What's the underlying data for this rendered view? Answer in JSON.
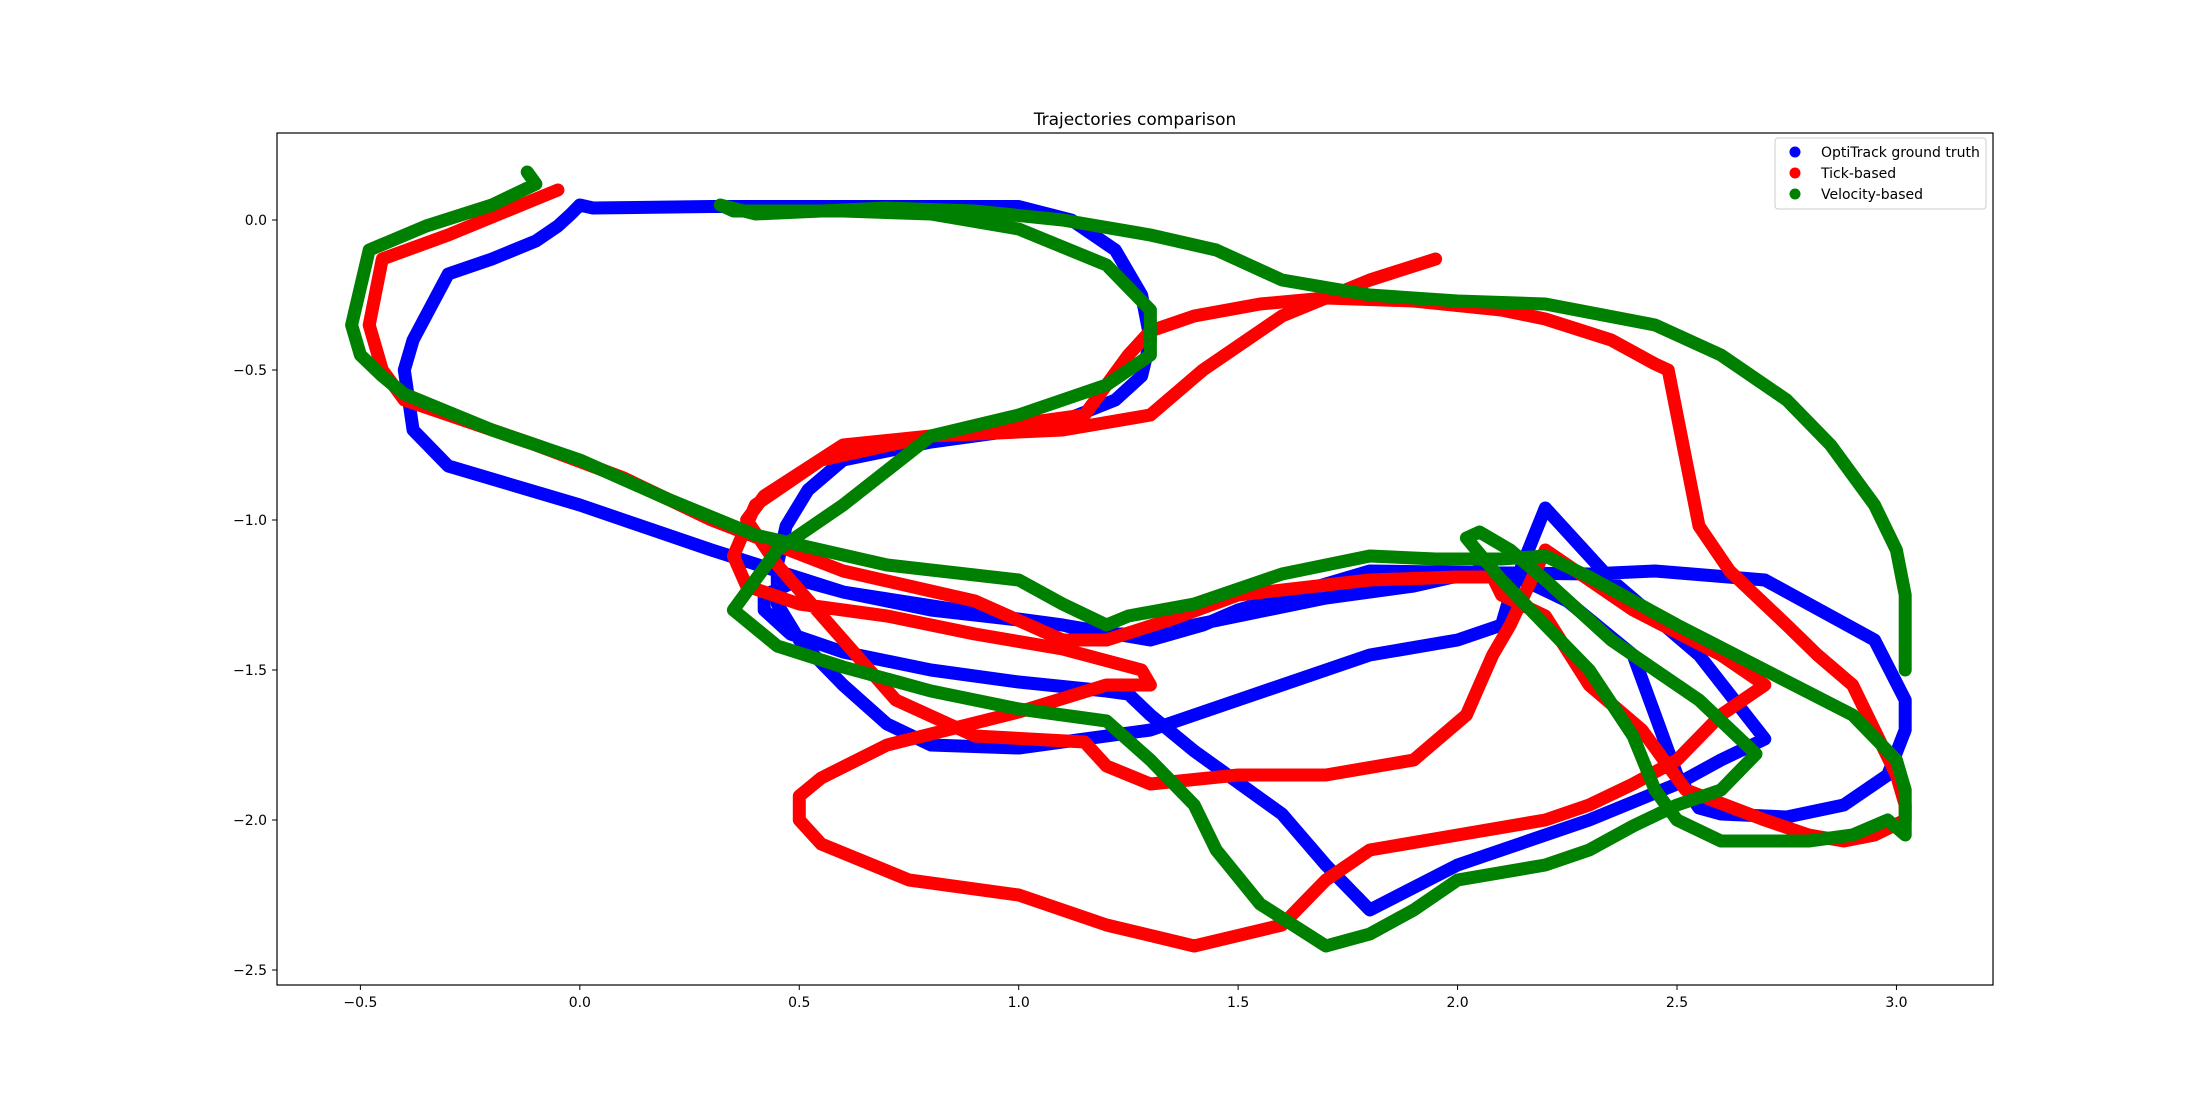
{
  "chart_data": {
    "type": "scatter",
    "title": "Trajectories comparison",
    "xlabel": "",
    "ylabel": "",
    "xlim": [
      -0.69,
      3.22
    ],
    "ylim": [
      -2.55,
      0.29
    ],
    "xticks": [
      -0.5,
      0.0,
      0.5,
      1.0,
      1.5,
      2.0,
      2.5,
      3.0
    ],
    "xtick_labels": [
      "−0.5",
      "0.0",
      "0.5",
      "1.0",
      "1.5",
      "2.0",
      "2.5",
      "3.0"
    ],
    "yticks": [
      0.0,
      -0.5,
      -1.0,
      -1.5,
      -2.0,
      -2.5
    ],
    "ytick_labels": [
      "0.0",
      "−0.5",
      "−1.0",
      "−1.5",
      "−2.0",
      "−2.5"
    ],
    "grid": false,
    "legend_position": "top-right",
    "series": [
      {
        "name": "OptiTrack ground truth",
        "color": "#0000ff",
        "x": [
          0.0,
          0.03,
          0.3,
          0.7,
          1.0,
          1.12,
          1.22,
          1.28,
          1.3,
          1.28,
          1.22,
          1.1,
          1.0,
          0.8,
          0.6,
          0.52,
          0.47,
          0.45,
          0.45,
          0.5,
          0.6,
          0.7,
          0.8,
          1.0,
          1.3,
          1.5,
          1.7,
          1.8,
          2.0,
          2.1,
          2.12,
          2.2,
          2.35,
          2.55,
          2.7,
          2.6,
          2.5,
          2.3,
          2.0,
          1.8,
          1.7,
          1.6,
          1.4,
          1.3,
          1.25,
          1.2,
          1.0,
          0.8,
          0.6,
          0.48,
          0.42,
          0.42,
          0.5,
          0.6,
          0.8,
          1.1,
          1.3,
          1.42,
          1.5,
          1.8,
          2.3,
          2.45,
          2.7,
          2.95,
          3.02,
          3.02,
          2.98,
          2.88,
          2.75,
          2.6,
          2.55,
          2.5,
          2.45,
          2.4,
          2.25,
          2.15,
          2.05,
          1.9,
          1.7,
          1.5,
          1.3,
          1.18,
          1.1,
          0.95,
          0.6,
          0.3,
          0.0,
          -0.3,
          -0.38,
          -0.4,
          -0.38,
          -0.3,
          -0.2,
          -0.1,
          -0.05,
          -0.02,
          0.0
        ],
        "y": [
          0.05,
          0.04,
          0.045,
          0.045,
          0.045,
          0.0,
          -0.1,
          -0.25,
          -0.4,
          -0.52,
          -0.6,
          -0.67,
          -0.7,
          -0.74,
          -0.8,
          -0.9,
          -1.02,
          -1.15,
          -1.28,
          -1.4,
          -1.55,
          -1.68,
          -1.75,
          -1.76,
          -1.7,
          -1.6,
          -1.5,
          -1.45,
          -1.4,
          -1.35,
          -1.25,
          -0.96,
          -1.2,
          -1.45,
          -1.73,
          -1.8,
          -1.88,
          -2.0,
          -2.15,
          -2.3,
          -2.15,
          -1.98,
          -1.77,
          -1.65,
          -1.58,
          -1.57,
          -1.54,
          -1.5,
          -1.44,
          -1.38,
          -1.3,
          -1.25,
          -1.2,
          -1.24,
          -1.3,
          -1.35,
          -1.4,
          -1.35,
          -1.3,
          -1.17,
          -1.18,
          -1.17,
          -1.2,
          -1.4,
          -1.6,
          -1.7,
          -1.85,
          -1.95,
          -1.99,
          -1.98,
          -1.96,
          -1.85,
          -1.65,
          -1.45,
          -1.27,
          -1.2,
          -1.17,
          -1.22,
          -1.26,
          -1.32,
          -1.38,
          -1.38,
          -1.35,
          -1.32,
          -1.24,
          -1.1,
          -0.95,
          -0.82,
          -0.7,
          -0.5,
          -0.4,
          -0.18,
          -0.13,
          -0.07,
          -0.02,
          0.02,
          0.05
        ]
      },
      {
        "name": "Tick-based",
        "color": "#ff0000",
        "x": [
          -0.05,
          -0.1,
          -0.2,
          -0.3,
          -0.45,
          -0.48,
          -0.45,
          -0.4,
          -0.3,
          -0.1,
          0.1,
          0.3,
          0.6,
          0.9,
          1.1,
          1.2,
          1.35,
          1.5,
          1.8,
          2.0,
          2.08,
          2.1,
          2.2,
          2.3,
          2.42,
          2.52,
          2.7,
          2.8,
          2.88,
          2.95,
          3.02,
          3.02,
          3.0,
          2.95,
          2.9,
          2.82,
          2.75,
          2.62,
          2.55,
          2.48,
          2.45,
          2.35,
          2.2,
          2.1,
          1.9,
          1.7,
          1.55,
          1.4,
          1.3,
          1.25,
          1.15,
          1.0,
          0.8,
          0.6,
          0.42,
          0.38,
          0.45,
          0.6,
          0.72,
          0.9,
          1.15,
          1.2,
          1.3,
          1.5,
          1.7,
          1.9,
          2.02,
          2.05,
          2.08,
          2.12,
          2.2,
          2.4,
          2.6,
          2.7,
          2.6,
          2.5,
          2.4,
          2.3,
          2.2,
          2.0,
          1.8,
          1.7,
          1.6,
          1.4,
          1.2,
          1.0,
          0.75,
          0.55,
          0.5,
          0.5,
          0.55,
          0.7,
          1.0,
          1.2,
          1.3,
          1.28,
          1.1,
          0.9,
          0.7,
          0.5,
          0.38,
          0.35,
          0.4,
          0.55,
          0.8,
          1.1,
          1.3,
          1.42,
          1.6,
          1.8,
          1.95
        ],
        "y": [
          0.1,
          0.07,
          0.01,
          -0.05,
          -0.13,
          -0.35,
          -0.5,
          -0.6,
          -0.65,
          -0.75,
          -0.86,
          -1.0,
          -1.17,
          -1.27,
          -1.4,
          -1.4,
          -1.33,
          -1.25,
          -1.2,
          -1.19,
          -1.19,
          -1.25,
          -1.32,
          -1.55,
          -1.7,
          -1.9,
          -2.0,
          -2.05,
          -2.07,
          -2.05,
          -2.0,
          -1.95,
          -1.85,
          -1.7,
          -1.55,
          -1.45,
          -1.35,
          -1.17,
          -1.02,
          -0.5,
          -0.48,
          -0.4,
          -0.33,
          -0.3,
          -0.27,
          -0.26,
          -0.28,
          -0.32,
          -0.37,
          -0.45,
          -0.65,
          -0.68,
          -0.72,
          -0.75,
          -0.92,
          -1.0,
          -1.15,
          -1.4,
          -1.6,
          -1.72,
          -1.74,
          -1.82,
          -1.88,
          -1.85,
          -1.85,
          -1.8,
          -1.65,
          -1.55,
          -1.45,
          -1.35,
          -1.1,
          -1.3,
          -1.45,
          -1.55,
          -1.65,
          -1.8,
          -1.88,
          -1.95,
          -2.0,
          -2.05,
          -2.1,
          -2.2,
          -2.35,
          -2.42,
          -2.35,
          -2.25,
          -2.2,
          -2.08,
          -2.0,
          -1.92,
          -1.86,
          -1.75,
          -1.64,
          -1.55,
          -1.55,
          -1.5,
          -1.43,
          -1.38,
          -1.32,
          -1.28,
          -1.22,
          -1.12,
          -0.95,
          -0.8,
          -0.72,
          -0.7,
          -0.65,
          -0.5,
          -0.32,
          -0.2,
          -0.13
        ]
      },
      {
        "name": "Velocity-based",
        "color": "#008000",
        "x": [
          -0.12,
          -0.1,
          -0.2,
          -0.35,
          -0.48,
          -0.52,
          -0.5,
          -0.45,
          -0.4,
          -0.2,
          0.0,
          0.2,
          0.4,
          0.7,
          1.0,
          1.1,
          1.2,
          1.25,
          1.4,
          1.6,
          1.8,
          1.95,
          2.1,
          2.2,
          2.3,
          2.5,
          2.7,
          2.9,
          3.0,
          3.02,
          3.02,
          2.98,
          2.9,
          2.8,
          2.7,
          2.6,
          2.5,
          2.45,
          2.4,
          2.3,
          2.2,
          2.1,
          2.02,
          2.05,
          2.12,
          2.2,
          2.35,
          2.55,
          2.68,
          2.6,
          2.5,
          2.4,
          2.3,
          2.2,
          2.0,
          1.9,
          1.8,
          1.7,
          1.55,
          1.45,
          1.4,
          1.3,
          1.2,
          1.0,
          0.8,
          0.6,
          0.45,
          0.35,
          0.45,
          0.6,
          0.8,
          1.0,
          1.2,
          1.3,
          1.3,
          1.2,
          1.0,
          0.8,
          0.6,
          0.45,
          0.35,
          0.32,
          0.4,
          0.55,
          0.7,
          0.9,
          1.1,
          1.3,
          1.45,
          1.6,
          1.8,
          2.0,
          2.2,
          2.45,
          2.6,
          2.75,
          2.85,
          2.95,
          3.0,
          3.02,
          3.02
        ],
        "y": [
          0.16,
          0.12,
          0.05,
          -0.02,
          -0.1,
          -0.35,
          -0.45,
          -0.52,
          -0.58,
          -0.7,
          -0.8,
          -0.93,
          -1.05,
          -1.15,
          -1.2,
          -1.28,
          -1.35,
          -1.32,
          -1.28,
          -1.18,
          -1.12,
          -1.13,
          -1.13,
          -1.12,
          -1.19,
          -1.35,
          -1.5,
          -1.65,
          -1.8,
          -1.9,
          -2.05,
          -2.0,
          -2.05,
          -2.07,
          -2.07,
          -2.07,
          -2.0,
          -1.9,
          -1.72,
          -1.5,
          -1.35,
          -1.2,
          -1.06,
          -1.04,
          -1.1,
          -1.2,
          -1.4,
          -1.6,
          -1.78,
          -1.9,
          -1.95,
          -2.02,
          -2.1,
          -2.15,
          -2.2,
          -2.3,
          -2.38,
          -2.42,
          -2.28,
          -2.1,
          -1.95,
          -1.8,
          -1.67,
          -1.63,
          -1.57,
          -1.49,
          -1.42,
          -1.3,
          -1.1,
          -0.95,
          -0.72,
          -0.65,
          -0.55,
          -0.45,
          -0.3,
          -0.15,
          -0.03,
          0.02,
          0.03,
          0.03,
          0.03,
          0.05,
          0.02,
          0.03,
          0.04,
          0.03,
          0.0,
          -0.05,
          -0.1,
          -0.2,
          -0.25,
          -0.27,
          -0.28,
          -0.35,
          -0.45,
          -0.6,
          -0.75,
          -0.95,
          -1.1,
          -1.25,
          -1.5
        ]
      }
    ]
  }
}
